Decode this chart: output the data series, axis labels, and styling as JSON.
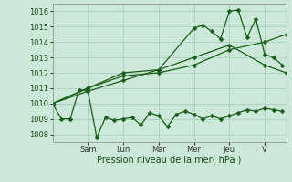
{
  "bg_color": "#cce8d8",
  "grid_color": "#aacfbe",
  "line_color": "#1a5c1a",
  "xlabel": "Pression niveau de la mer( hPa )",
  "ylim": [
    1007.5,
    1016.5
  ],
  "yticks": [
    1008,
    1009,
    1010,
    1011,
    1012,
    1013,
    1014,
    1015,
    1016
  ],
  "day_labels": [
    "Sam",
    "Lun",
    "Mar",
    "Mer",
    "Jeu",
    "V"
  ],
  "day_positions": [
    28,
    56,
    84,
    112,
    140,
    168
  ],
  "xlim": [
    0,
    185
  ],
  "series1_x": [
    0,
    7,
    14,
    21,
    28,
    35,
    42,
    49,
    56,
    63,
    70,
    77,
    84,
    91,
    98,
    105,
    112,
    119,
    126,
    133,
    140,
    147,
    154,
    161,
    168,
    175,
    182
  ],
  "series1_y": [
    1010.0,
    1009.0,
    1009.0,
    1010.9,
    1010.8,
    1007.8,
    1009.1,
    1008.9,
    1009.0,
    1009.1,
    1008.6,
    1009.4,
    1009.2,
    1008.5,
    1009.3,
    1009.5,
    1009.3,
    1009.0,
    1009.2,
    1009.0,
    1009.2,
    1009.4,
    1009.6,
    1009.5,
    1009.7,
    1009.6,
    1009.5
  ],
  "series2_x": [
    0,
    28,
    56,
    84,
    112,
    140,
    168,
    185
  ],
  "series2_y": [
    1010.0,
    1011.0,
    1011.8,
    1012.0,
    1012.5,
    1013.5,
    1014.0,
    1014.5
  ],
  "series3_x": [
    0,
    28,
    56,
    84,
    112,
    119,
    126,
    133,
    140,
    147,
    154,
    161,
    168,
    175,
    182
  ],
  "series3_y": [
    1010.0,
    1011.0,
    1012.0,
    1012.2,
    1014.9,
    1015.1,
    1014.7,
    1014.2,
    1016.0,
    1016.1,
    1014.3,
    1015.5,
    1013.2,
    1013.0,
    1012.5
  ],
  "series4_x": [
    0,
    28,
    56,
    84,
    112,
    140,
    168,
    185
  ],
  "series4_y": [
    1010.0,
    1010.8,
    1011.5,
    1012.2,
    1013.0,
    1013.8,
    1012.5,
    1012.0
  ]
}
